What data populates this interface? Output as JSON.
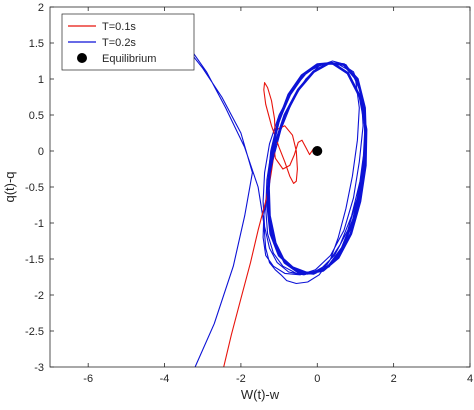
{
  "chart_data": {
    "type": "line",
    "title": "",
    "xlabel": "W(t)-w",
    "ylabel": "q(t)-q",
    "xlim": [
      -7,
      4
    ],
    "ylim": [
      -3,
      2
    ],
    "xticks": [
      -6,
      -4,
      -2,
      0,
      2,
      4
    ],
    "yticks": [
      -3,
      -2.5,
      -2,
      -1.5,
      -1,
      -0.5,
      0,
      0.5,
      1,
      1.5,
      2
    ],
    "grid": false,
    "legend_position": "top-left",
    "series": [
      {
        "name": "T=0.1s",
        "color": "#e8140c",
        "x": [
          -2.45,
          -2.25,
          -2.0,
          -1.75,
          -1.55,
          -1.35,
          -1.25,
          -1.2,
          -1.15,
          -1.1,
          -1.12,
          -1.2,
          -1.3,
          -1.38,
          -1.4,
          -1.35,
          -1.2,
          -1.0,
          -0.85,
          -0.72,
          -0.62,
          -0.55,
          -0.52,
          -0.55,
          -0.65,
          -0.85,
          -1.05,
          -1.15,
          -1.1,
          -0.9,
          -0.72,
          -0.6,
          -0.5,
          -0.4,
          -0.3,
          -0.2,
          -0.1,
          -0.04,
          0.0
        ],
        "y": [
          -3.0,
          -2.55,
          -2.05,
          -1.55,
          -1.1,
          -0.7,
          -0.45,
          -0.28,
          -0.1,
          0.2,
          0.45,
          0.7,
          0.88,
          0.95,
          0.85,
          0.65,
          0.35,
          0.05,
          -0.15,
          -0.35,
          -0.45,
          -0.42,
          -0.25,
          0.0,
          0.22,
          0.35,
          0.3,
          0.12,
          -0.1,
          -0.25,
          -0.2,
          -0.05,
          0.12,
          0.15,
          0.05,
          -0.05,
          0.03,
          0.05,
          0.0
        ]
      },
      {
        "name": "T=0.2s",
        "color": "#0c12d6",
        "x": [
          -3.2,
          -2.7,
          -2.2,
          -1.9,
          -1.7,
          -2.0,
          -2.5,
          -3.0,
          -3.3,
          -3.4,
          -3.3,
          -2.9,
          -2.4,
          -1.9,
          -1.55,
          -1.4,
          -1.35,
          -1.25,
          -1.1,
          -0.95,
          -0.8,
          -0.55,
          -0.25,
          0.05,
          0.35,
          0.55,
          0.75,
          0.92,
          1.05,
          1.1,
          1.0,
          0.75,
          0.4,
          0.05,
          -0.3,
          -0.65,
          -0.95,
          -1.15,
          -1.3,
          -1.4,
          -1.42,
          -1.35,
          -1.15,
          -0.85,
          -0.45,
          -0.05,
          0.35,
          0.7,
          0.95,
          1.1,
          1.2,
          1.15,
          0.95,
          0.6,
          0.2,
          -0.25,
          -0.65,
          -1.0,
          -1.25,
          -1.38,
          -1.42,
          -1.38,
          -1.25,
          -1.05,
          -0.75,
          -0.35,
          0.05,
          0.45,
          0.8,
          1.05,
          1.2,
          1.25,
          1.15,
          0.9,
          0.5,
          0.05,
          -0.35,
          -0.7,
          -1.0,
          -1.2,
          -1.32,
          -1.35,
          -1.3,
          -1.15,
          -0.9,
          -0.55,
          -0.15,
          0.25,
          0.6,
          0.9,
          1.12,
          1.25,
          1.22,
          1.05,
          0.7,
          0.3,
          -0.1,
          -0.5,
          -0.85,
          -1.1,
          -1.25,
          -1.3,
          -1.22,
          -1.0,
          -0.65,
          -0.25,
          0.15,
          0.55,
          0.88,
          1.12,
          1.26,
          1.28,
          1.12,
          0.8,
          0.4,
          0.0,
          -0.4,
          -0.75,
          -1.02,
          -1.2,
          -1.28,
          -1.25,
          -1.1,
          -0.85,
          -0.5,
          -0.1,
          0.3,
          0.65,
          0.95,
          1.15,
          1.27,
          1.24,
          1.05,
          0.7,
          0.3
        ],
        "y": [
          -3.0,
          -2.4,
          -1.6,
          -0.9,
          -0.3,
          0.25,
          0.75,
          1.15,
          1.35,
          1.45,
          1.4,
          1.1,
          0.6,
          0.05,
          -0.5,
          -1.0,
          -1.35,
          -1.55,
          -1.65,
          -1.72,
          -1.8,
          -1.84,
          -1.82,
          -1.72,
          -1.5,
          -1.2,
          -0.8,
          -0.35,
          0.15,
          0.6,
          1.0,
          1.2,
          1.25,
          1.18,
          1.0,
          0.7,
          0.3,
          -0.1,
          -0.5,
          -0.9,
          -1.2,
          -1.45,
          -1.6,
          -1.7,
          -1.72,
          -1.65,
          -1.45,
          -1.1,
          -0.65,
          -0.15,
          0.35,
          0.8,
          1.1,
          1.22,
          1.22,
          1.1,
          0.85,
          0.5,
          0.1,
          -0.3,
          -0.7,
          -1.05,
          -1.35,
          -1.55,
          -1.68,
          -1.72,
          -1.66,
          -1.45,
          -1.1,
          -0.65,
          -0.15,
          0.35,
          0.8,
          1.1,
          1.22,
          1.2,
          1.05,
          0.78,
          0.42,
          0.02,
          -0.4,
          -0.8,
          -1.15,
          -1.42,
          -1.6,
          -1.7,
          -1.7,
          -1.58,
          -1.3,
          -0.9,
          -0.42,
          0.1,
          0.6,
          0.98,
          1.2,
          1.22,
          1.1,
          0.85,
          0.5,
          0.1,
          -0.3,
          -0.75,
          -1.15,
          -1.45,
          -1.62,
          -1.7,
          -1.66,
          -1.48,
          -1.15,
          -0.7,
          -0.2,
          0.3,
          0.75,
          1.08,
          1.22,
          1.2,
          1.05,
          0.78,
          0.4,
          0.0,
          -0.45,
          -0.9,
          -1.28,
          -1.55,
          -1.68,
          -1.7,
          -1.6,
          -1.35,
          -0.95,
          -0.45,
          0.1,
          0.6,
          1.0,
          1.2,
          1.22
        ]
      }
    ],
    "points": [
      {
        "name": "Equilibrium",
        "x": 0,
        "y": 0,
        "color": "#000000"
      }
    ]
  }
}
